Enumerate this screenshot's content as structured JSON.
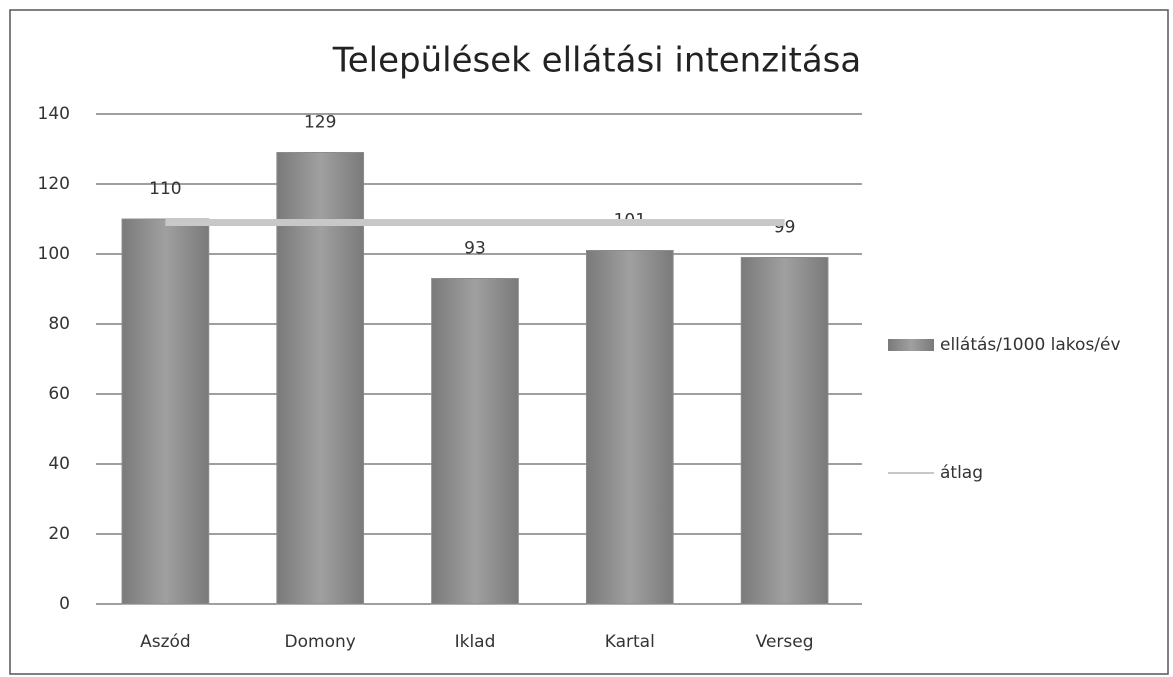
{
  "chart_data": {
    "type": "bar",
    "title": "Települések ellátási intenzitása",
    "categories": [
      "Aszód",
      "Domony",
      "Iklad",
      "Kartal",
      "Verseg"
    ],
    "series": [
      {
        "name": "ellátás/1000 lakos/év",
        "type": "bar",
        "color": "#8c8c8c",
        "values": [
          110,
          129,
          93,
          101,
          99
        ]
      },
      {
        "name": "átlag",
        "type": "line",
        "color": "#c8c8c8",
        "values": [
          109,
          109,
          109,
          109,
          109
        ]
      }
    ],
    "ylim": [
      0,
      140
    ],
    "yticks": [
      0,
      20,
      40,
      60,
      80,
      100,
      120,
      140
    ],
    "grid": true,
    "legend": "right"
  }
}
